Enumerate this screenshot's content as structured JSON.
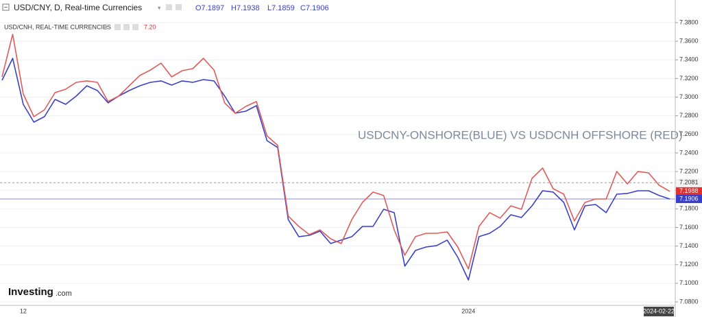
{
  "chart_data": {
    "type": "line",
    "header": {
      "title": "USD/CNY, D, Real-time Currencies",
      "ohlc": [
        "O7.1897",
        "H7.1938",
        "L7.1859",
        "C7.1906"
      ],
      "second_title": "USD/CNH, REAL-TIME CURRENCIES",
      "second_value": "7.20"
    },
    "annotation": "USDCNY-ONSHORE(BLUE) VS USDCNH OFFSHORE (RED)",
    "logo": {
      "name": "Investing",
      "suffix": ".com"
    },
    "categories": [
      null,
      null,
      "12",
      null,
      null,
      null,
      null,
      null,
      null,
      null,
      null,
      null,
      null,
      null,
      null,
      null,
      null,
      null,
      null,
      null,
      null,
      null,
      null,
      null,
      null,
      null,
      null,
      null,
      null,
      null,
      null,
      null,
      null,
      null,
      null,
      null,
      null,
      null,
      null,
      null,
      null,
      null,
      null,
      null,
      "2024",
      null,
      null,
      null,
      null,
      null,
      null,
      null,
      null,
      null,
      null,
      null,
      null,
      null,
      null,
      null,
      null,
      null,
      null,
      "2024-02-22"
    ],
    "series": [
      {
        "name": "USD/CNY",
        "color": "#3a3fc8",
        "values": [
          7.3181,
          7.3417,
          7.2923,
          7.2731,
          7.279,
          7.2975,
          7.2923,
          7.3011,
          7.3122,
          7.307,
          7.2938,
          7.3011,
          7.307,
          7.3122,
          7.3159,
          7.3174,
          7.3129,
          7.3174,
          7.3159,
          7.3188,
          7.3174,
          7.3011,
          7.2827,
          7.2849,
          7.2908,
          7.2532,
          7.2459,
          7.1685,
          7.1501,
          7.1515,
          7.156,
          7.1427,
          7.1464,
          7.1501,
          7.1611,
          7.1611,
          7.1795,
          7.1759,
          7.1184,
          7.1353,
          7.139,
          7.1405,
          7.1464,
          7.1279,
          7.1036,
          7.1501,
          7.1537,
          7.1611,
          7.1736,
          7.1707,
          7.1832,
          7.1994,
          7.198,
          7.1869,
          7.1574,
          7.1832,
          7.1847,
          7.1759,
          7.1957,
          7.1965,
          7.1994,
          7.1994,
          7.1943,
          7.1906
        ]
      },
      {
        "name": "USD/CNH",
        "color": "#e05a5a",
        "values": [
          7.3218,
          7.3675,
          7.3034,
          7.279,
          7.2864,
          7.3048,
          7.3085,
          7.3159,
          7.3174,
          7.3159,
          7.2952,
          7.3011,
          7.3122,
          7.3233,
          7.3291,
          7.3365,
          7.3218,
          7.3284,
          7.3306,
          7.3417,
          7.3291,
          7.2938,
          7.2827,
          7.2901,
          7.2952,
          7.2584,
          7.2481,
          7.1722,
          7.1611,
          7.1523,
          7.1574,
          7.1478,
          7.1427,
          7.1685,
          7.1869,
          7.198,
          7.1943,
          7.1574,
          7.1302,
          7.1501,
          7.1537,
          7.1537,
          7.1552,
          7.139,
          7.1154,
          7.1611,
          7.1759,
          7.17,
          7.1832,
          7.1795,
          7.2127,
          7.2238,
          7.2016,
          7.1957,
          7.167,
          7.1869,
          7.1906,
          7.1906,
          7.2201,
          7.2068,
          7.2201,
          7.2186,
          7.2053,
          7.1988
        ]
      }
    ],
    "ylim": [
      7.08,
      7.38
    ],
    "yticks": [
      {
        "value": 7.08,
        "label": "7.0800"
      },
      {
        "value": 7.1,
        "label": "7.1000"
      },
      {
        "value": 7.12,
        "label": "7.1200"
      },
      {
        "value": 7.14,
        "label": "7.1400"
      },
      {
        "value": 7.16,
        "label": "7.1600"
      },
      {
        "value": 7.18,
        "label": "7.1800"
      },
      {
        "value": 7.2,
        "label": "7.2000"
      },
      {
        "value": 7.22,
        "label": "7.2200"
      },
      {
        "value": 7.24,
        "label": "7.2400"
      },
      {
        "value": 7.26,
        "label": "7.2600"
      },
      {
        "value": 7.28,
        "label": "7.2800"
      },
      {
        "value": 7.3,
        "label": "7.3000"
      },
      {
        "value": 7.32,
        "label": "7.3200"
      },
      {
        "value": 7.34,
        "label": "7.3400"
      },
      {
        "value": 7.36,
        "label": "7.3600"
      },
      {
        "value": 7.38,
        "label": "7.3800"
      }
    ],
    "price_lines": [
      {
        "value": 7.2081,
        "color": "#999999",
        "style": "dashed"
      },
      {
        "value": 7.1988,
        "color": "#e03030",
        "style": "box"
      },
      {
        "value": 7.1906,
        "color": "#3a3fc8",
        "style": "solid"
      }
    ],
    "grid": true
  }
}
